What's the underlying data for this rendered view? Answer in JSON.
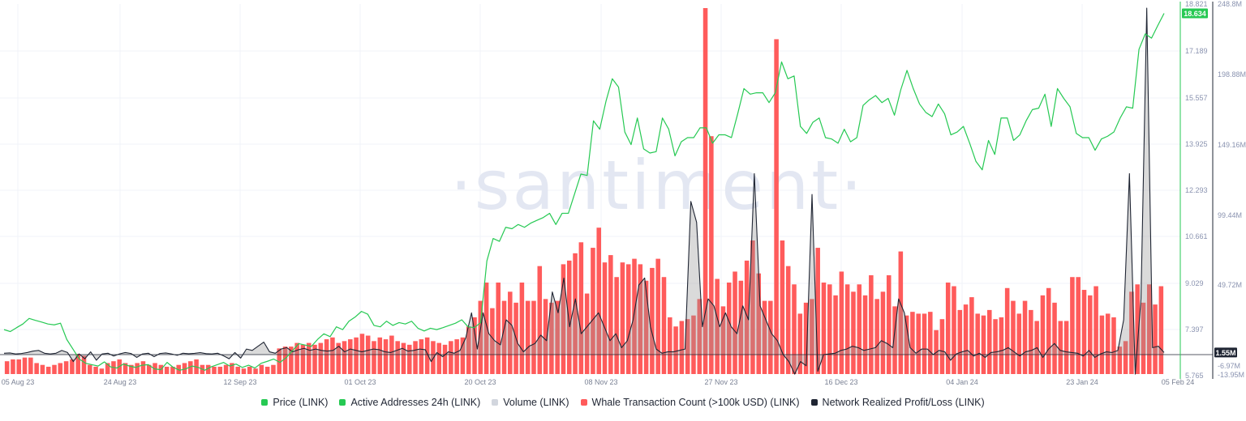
{
  "watermark": "·santiment·",
  "legend": [
    {
      "label": "Price (LINK)",
      "color": "#26c953"
    },
    {
      "label": "Active Addresses 24h (LINK)",
      "color": "#26c953"
    },
    {
      "label": "Volume (LINK)",
      "color": "#d2d6de"
    },
    {
      "label": "Whale Transaction Count (>100k USD) (LINK)",
      "color": "#ff5b5b"
    },
    {
      "label": "Network Realized Profit/Loss (LINK)",
      "color": "#1f2533"
    }
  ],
  "chart_data": {
    "type": "line",
    "x_ticks": [
      "05 Aug 23",
      "24 Aug 23",
      "12 Sep 23",
      "01 Oct 23",
      "20 Oct 23",
      "08 Nov 23",
      "27 Nov 23",
      "16 Dec 23",
      "04 Jan 24",
      "23 Jan 24",
      "05 Feb 24"
    ],
    "price_axis": {
      "ticks": [
        "18.821",
        "17.189",
        "15.557",
        "13.925",
        "12.293",
        "10.661",
        "9.029",
        "7.397",
        "5.765"
      ],
      "min": 5.765,
      "max": 18.821
    },
    "secondary_axis": {
      "ticks": [
        "248.8M",
        "198.88M",
        "149.16M",
        "99.44M",
        "49.72M",
        "-6.97M",
        "-13.95M"
      ],
      "min": -13.95,
      "max": 248.8
    },
    "last_price_badge": "18.634",
    "last_npl_badge": "1.55M",
    "series": [
      {
        "name": "Price (LINK)",
        "color": "#26c953",
        "values": [
          7.35,
          7.28,
          7.42,
          7.55,
          7.75,
          7.68,
          7.62,
          7.55,
          7.52,
          7.58,
          7.0,
          6.65,
          6.3,
          6.15,
          6.1,
          6.05,
          6.2,
          6.02,
          5.98,
          6.12,
          6.05,
          6.0,
          6.08,
          6.1,
          5.95,
          5.92,
          6.18,
          6.0,
          5.9,
          5.95,
          6.05,
          6.0,
          5.9,
          6.02,
          6.1,
          6.18,
          6.05,
          6.12,
          6.0,
          6.08,
          5.98,
          6.15,
          6.22,
          6.3,
          6.18,
          6.35,
          6.6,
          6.85,
          6.8,
          6.75,
          7.0,
          7.2,
          7.1,
          7.45,
          7.35,
          7.65,
          7.8,
          8.0,
          7.9,
          7.5,
          7.45,
          7.65,
          7.5,
          7.6,
          7.55,
          7.65,
          7.4,
          7.3,
          7.4,
          7.35,
          7.42,
          7.5,
          7.58,
          7.7,
          7.45,
          7.42,
          7.6,
          9.8,
          10.6,
          10.5,
          11.0,
          10.95,
          11.1,
          11.0,
          11.15,
          11.25,
          11.35,
          11.5,
          11.1,
          11.5,
          11.5,
          12.2,
          12.9,
          12.85,
          14.8,
          14.5,
          15.5,
          16.3,
          16.0,
          14.4,
          13.95,
          14.9,
          13.8,
          13.65,
          13.7,
          14.9,
          14.5,
          13.55,
          14.05,
          14.2,
          14.2,
          14.55,
          14.55,
          14.0,
          14.3,
          14.3,
          14.2,
          15.05,
          15.95,
          15.75,
          15.8,
          15.8,
          15.45,
          15.8,
          16.9,
          16.3,
          16.4,
          14.6,
          14.35,
          14.75,
          14.9,
          14.2,
          14.15,
          14.0,
          14.5,
          14.05,
          14.2,
          15.35,
          15.55,
          15.7,
          15.45,
          15.6,
          15.0,
          15.9,
          16.6,
          15.95,
          15.4,
          15.1,
          14.95,
          15.4,
          15.05,
          14.3,
          14.4,
          14.6,
          14.0,
          13.35,
          13.05,
          14.1,
          13.6,
          14.9,
          14.9,
          14.1,
          14.3,
          14.8,
          15.2,
          15.25,
          15.75,
          14.6,
          15.95,
          15.6,
          15.3,
          14.35,
          14.2,
          14.2,
          13.75,
          14.15,
          14.25,
          14.4,
          14.9,
          15.3,
          15.25,
          17.35,
          17.9,
          17.75,
          18.2,
          18.634
        ]
      },
      {
        "name": "Whale Transaction Count (>100k USD) (LINK)",
        "color": "#ff5b5b",
        "values": [
          7,
          8,
          8,
          9,
          9,
          6,
          5,
          4,
          5,
          6,
          7,
          8,
          11,
          10,
          5,
          4,
          3,
          6,
          7,
          8,
          6,
          5,
          6,
          7,
          5,
          6,
          5,
          4,
          4,
          5,
          6,
          7,
          8,
          5,
          5,
          4,
          4,
          5,
          6,
          4,
          3,
          4,
          3,
          5,
          4,
          5,
          14,
          15,
          15,
          17,
          16,
          17,
          16,
          17,
          19,
          20,
          17,
          18,
          19,
          20,
          22,
          21,
          18,
          20,
          19,
          21,
          18,
          17,
          16,
          18,
          19,
          20,
          18,
          17,
          16,
          18,
          19,
          20,
          26,
          31,
          40,
          50,
          36,
          50,
          40,
          45,
          39,
          50,
          40,
          40,
          59,
          41,
          39,
          40,
          60,
          62,
          66,
          72,
          44,
          69,
          80,
          61,
          65,
          53,
          61,
          60,
          63,
          60,
          51,
          58,
          63,
          53,
          31,
          26,
          29,
          30,
          32,
          41,
          200,
          130,
          52,
          37,
          50,
          56,
          51,
          62,
          73,
          55,
          40,
          40,
          183,
          73,
          59,
          49,
          33,
          39,
          41,
          69,
          50,
          49,
          43,
          56,
          49,
          45,
          49,
          43,
          54,
          41,
          45,
          54,
          37,
          67,
          32,
          34,
          33,
          33,
          34,
          24,
          30,
          50,
          48,
          35,
          38,
          42,
          33,
          32,
          35,
          30,
          31,
          47,
          40,
          33,
          40,
          35,
          29,
          43,
          47,
          39,
          29,
          29,
          53,
          53,
          46,
          43,
          48,
          32,
          33,
          31,
          15,
          18,
          45,
          49,
          39,
          49,
          38,
          48
        ]
      },
      {
        "name": "Network Realized Profit/Loss (LINK)",
        "color": "#1f2533",
        "values": [
          1.0,
          1.2,
          0.5,
          0.8,
          1.5,
          2.5,
          3.0,
          1.0,
          0.5,
          1.0,
          3.0,
          1.5,
          -5.0,
          0.5,
          -3.0,
          2.0,
          -4.0,
          0.5,
          1.0,
          -1.0,
          0.5,
          1.5,
          0.8,
          -2.0,
          0.5,
          1.0,
          -1.5,
          0.8,
          1.2,
          0.5,
          -0.5,
          1.0,
          0.6,
          0.9,
          1.4,
          0.7,
          0.5,
          1.0,
          -0.8,
          -3.0,
          1.5,
          -2.5,
          4.0,
          3.0,
          6.0,
          9.0,
          2.0,
          1.0,
          4.0,
          5.0,
          2.0,
          3.5,
          4.5,
          3.0,
          4.0,
          3.0,
          2.5,
          3.0,
          6.0,
          2.0,
          4.0,
          3.0,
          2.0,
          3.0,
          4.0,
          3.5,
          2.0,
          1.5,
          3.0,
          4.5,
          2.5,
          3.0,
          4.0,
          3.5,
          -5.0,
          1.5,
          -1.5,
          2.0,
          1.0,
          3.0,
          12.0,
          30.0,
          4.0,
          30.0,
          15.0,
          10.0,
          7.0,
          25.0,
          21.0,
          8.0,
          2.0,
          6.0,
          8.0,
          14.0,
          10.0,
          45.0,
          30.0,
          55.0,
          20.0,
          40.0,
          15.0,
          20.0,
          25.0,
          30.0,
          20.0,
          10.0,
          15.0,
          5.0,
          10.0,
          25.0,
          50.0,
          55.0,
          20.0,
          4.0,
          1.0,
          2.0,
          2.0,
          3.0,
          4.0,
          110.0,
          95.0,
          20.0,
          40.0,
          35.0,
          20.0,
          30.0,
          20.0,
          15.0,
          35.0,
          25.0,
          130.0,
          35.0,
          25.0,
          15.0,
          10.0,
          0.0,
          -5.0,
          -14.0,
          -5.0,
          -8.0,
          115.0,
          -12.0,
          0.0,
          0.5,
          1.0,
          3.0,
          4.0,
          6.0,
          5.0,
          3.0,
          4.0,
          5.0,
          10.0,
          8.0,
          5.0,
          40.0,
          30.0,
          5.0,
          1.0,
          4.0,
          4.0,
          0.0,
          3.0,
          2.0,
          -4.0,
          0.5,
          2.0,
          3.0,
          -1.0,
          1.0,
          -2.0,
          1.5,
          2.0,
          3.0,
          5.0,
          2.0,
          -1.0,
          2.0,
          3.0,
          5.0,
          -2.0,
          4.0,
          8.0,
          3.0,
          2.0,
          1.5,
          1.0,
          -1.0,
          3.0,
          -2.0,
          0.5,
          2.0,
          1.5,
          3.0,
          25.0,
          130.0,
          -14.0,
          40.0,
          248.8,
          5.0,
          6.0,
          1.55
        ]
      },
      {
        "name": "Volume (LINK)",
        "color": "#d2d6de",
        "values": []
      }
    ]
  }
}
